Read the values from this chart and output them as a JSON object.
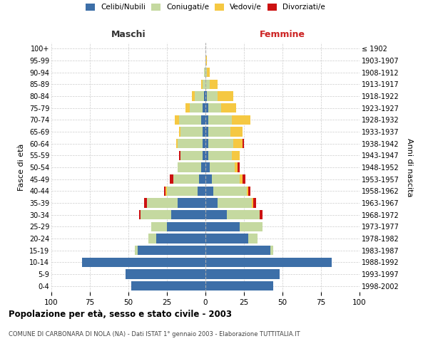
{
  "age_groups": [
    "0-4",
    "5-9",
    "10-14",
    "15-19",
    "20-24",
    "25-29",
    "30-34",
    "35-39",
    "40-44",
    "45-49",
    "50-54",
    "55-59",
    "60-64",
    "65-69",
    "70-74",
    "75-79",
    "80-84",
    "85-89",
    "90-94",
    "95-99",
    "100+"
  ],
  "birth_years": [
    "1998-2002",
    "1993-1997",
    "1988-1992",
    "1983-1987",
    "1978-1982",
    "1973-1977",
    "1968-1972",
    "1963-1967",
    "1958-1962",
    "1953-1957",
    "1948-1952",
    "1943-1947",
    "1938-1942",
    "1933-1937",
    "1928-1932",
    "1923-1927",
    "1918-1922",
    "1913-1917",
    "1908-1912",
    "1903-1907",
    "≤ 1902"
  ],
  "maschi": {
    "celibi": [
      48,
      52,
      80,
      44,
      32,
      25,
      22,
      18,
      5,
      4,
      3,
      2,
      2,
      2,
      3,
      2,
      1,
      0,
      0,
      0,
      0
    ],
    "coniugati": [
      0,
      0,
      0,
      2,
      5,
      10,
      20,
      20,
      20,
      17,
      15,
      14,
      16,
      14,
      14,
      8,
      6,
      2,
      1,
      0,
      0
    ],
    "vedovi": [
      0,
      0,
      0,
      0,
      0,
      0,
      0,
      0,
      1,
      0,
      0,
      0,
      1,
      1,
      3,
      3,
      2,
      1,
      0,
      0,
      0
    ],
    "divorziati": [
      0,
      0,
      0,
      0,
      0,
      0,
      1,
      2,
      1,
      2,
      0,
      1,
      0,
      0,
      0,
      0,
      0,
      0,
      0,
      0,
      0
    ]
  },
  "femmine": {
    "nubili": [
      44,
      48,
      82,
      42,
      28,
      22,
      14,
      8,
      5,
      4,
      3,
      2,
      2,
      2,
      2,
      2,
      1,
      0,
      0,
      0,
      0
    ],
    "coniugate": [
      0,
      0,
      0,
      2,
      6,
      15,
      21,
      22,
      22,
      18,
      16,
      15,
      16,
      14,
      15,
      8,
      7,
      3,
      1,
      0,
      0
    ],
    "vedove": [
      0,
      0,
      0,
      0,
      0,
      0,
      0,
      1,
      1,
      2,
      2,
      5,
      6,
      8,
      12,
      10,
      10,
      5,
      2,
      1,
      0
    ],
    "divorziate": [
      0,
      0,
      0,
      0,
      0,
      0,
      2,
      2,
      1,
      2,
      1,
      0,
      1,
      0,
      0,
      0,
      0,
      0,
      0,
      0,
      0
    ]
  },
  "colors": {
    "celibi_nubili": "#3d6fa8",
    "coniugati": "#c5d9a0",
    "vedovi": "#f5c842",
    "divorziati": "#cc1111"
  },
  "title": "Popolazione per età, sesso e stato civile - 2003",
  "subtitle": "COMUNE DI CARBONARA DI NOLA (NA) - Dati ISTAT 1° gennaio 2003 - Elaborazione TUTTITALIA.IT",
  "xlabel_left": "Maschi",
  "xlabel_right": "Femmine",
  "ylabel_left": "Fasce di età",
  "ylabel_right": "Anni di nascita",
  "xlim": 100,
  "background_color": "#ffffff",
  "grid_color": "#cccccc"
}
